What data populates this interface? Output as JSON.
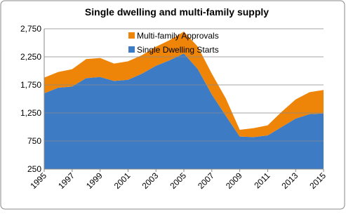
{
  "chart_data": {
    "type": "stacked_area",
    "title": "Single dwelling and multi-family supply",
    "x": [
      1995,
      1996,
      1997,
      1998,
      1999,
      2000,
      2001,
      2002,
      2003,
      2004,
      2005,
      2006,
      2007,
      2008,
      2009,
      2010,
      2011,
      2012,
      2013,
      2014,
      2015
    ],
    "series": [
      {
        "name": "Single Dwelling Starts",
        "color": "#3d7cc4",
        "values": [
          1350,
          1450,
          1470,
          1620,
          1640,
          1570,
          1590,
          1700,
          1840,
          1940,
          2060,
          1780,
          1330,
          950,
          580,
          570,
          600,
          750,
          900,
          980,
          990
        ]
      },
      {
        "name": "Multi-family Approvals",
        "color": "#ee8508",
        "values": [
          280,
          280,
          310,
          340,
          340,
          310,
          330,
          330,
          340,
          360,
          390,
          400,
          370,
          310,
          120,
          160,
          180,
          270,
          340,
          390,
          420
        ]
      }
    ],
    "xlim": [
      1995,
      2015
    ],
    "xticks": [
      1995,
      1997,
      1999,
      2001,
      2003,
      2005,
      2007,
      2009,
      2011,
      2013,
      2015
    ],
    "ylim": [
      250,
      2750
    ],
    "yticks": [
      {
        "value": 250,
        "label": "250"
      },
      {
        "value": 750,
        "label": "750"
      },
      {
        "value": 1250,
        "label": "1,250"
      },
      {
        "value": 1750,
        "label": "1,750"
      },
      {
        "value": 2250,
        "label": "2,250"
      },
      {
        "value": 2750,
        "label": "2,750"
      }
    ],
    "grid": true,
    "legend": "upper center"
  }
}
